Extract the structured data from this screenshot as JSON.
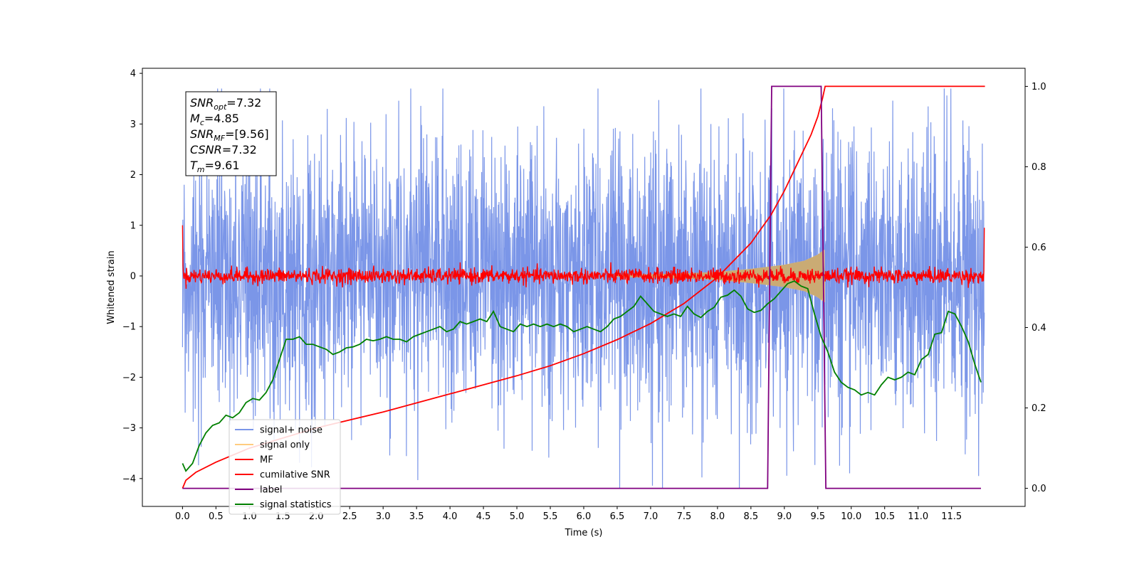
{
  "chart_data": {
    "type": "line",
    "title": "",
    "xlabel": "Time (s)",
    "ylabel": "Whitened strain",
    "xlim": [
      -0.6,
      12.6
    ],
    "ylim": [
      -4.55,
      4.1
    ],
    "y2lim": [
      -0.045,
      1.045
    ],
    "x_ticks": [
      0.0,
      0.5,
      1.0,
      1.5,
      2.0,
      2.5,
      3.0,
      3.5,
      4.0,
      4.5,
      5.0,
      5.5,
      6.0,
      6.5,
      7.0,
      7.5,
      8.0,
      8.5,
      9.0,
      9.5,
      10.0,
      10.5,
      11.0,
      11.5
    ],
    "x_tick_labels": [
      "0.0",
      "0.5",
      "1.0",
      "1.5",
      "2.0",
      "2.5",
      "3.0",
      "3.5",
      "4.0",
      "4.5",
      "5.0",
      "5.5",
      "6.0",
      "6.5",
      "7.0",
      "7.5",
      "8.0",
      "8.5",
      "9.0",
      "9.5",
      "10.0",
      "10.5",
      "11.0",
      "11.5"
    ],
    "y_ticks": [
      4,
      3,
      2,
      1,
      0,
      -1,
      -2,
      -3,
      -4
    ],
    "y_tick_labels": [
      "4",
      "3",
      "2",
      "1",
      "0",
      "−1",
      "−2",
      "−3",
      "−4"
    ],
    "y2_ticks": [
      1.0,
      0.8,
      0.6,
      0.4,
      0.2,
      0.0
    ],
    "y2_tick_labels": [
      "1.0",
      "0.8",
      "0.6",
      "0.4",
      "0.2",
      "0.0"
    ],
    "grid": false,
    "legend_position": "lower-left",
    "legend": [
      {
        "name": "signal+ noise",
        "color": "#7b96e8"
      },
      {
        "name": "signal only",
        "color": "#ffcc80"
      },
      {
        "name": "MF",
        "color": "#ff0000"
      },
      {
        "name": "cumilative SNR",
        "color": "#ff0000"
      },
      {
        "name": "label",
        "color": "#800080"
      },
      {
        "name": "signal statistics",
        "color": "#008000"
      }
    ],
    "annotations": [
      {
        "base": "SNR",
        "sub": "opt",
        "value": "=7.32"
      },
      {
        "base": "M",
        "sub": "c",
        "value": "=4.85"
      },
      {
        "base": "SNR",
        "sub": "MF",
        "value": "=[9.56]"
      },
      {
        "base": "CSNR",
        "sub": "",
        "value": "=7.32"
      },
      {
        "base": "T",
        "sub": "m",
        "value": "=9.61"
      }
    ],
    "series": [
      {
        "name": "signal+ noise",
        "axis": "left",
        "color": "#7b96e8",
        "x_range": [
          0.0,
          11.99
        ],
        "description_envelope": {
          "typical_amplitude": 1.9,
          "max": 3.7,
          "min": -4.2
        }
      },
      {
        "name": "signal only",
        "axis": "left",
        "color": "#ffcc80",
        "x_range": [
          6.5,
          9.61
        ],
        "envelope_points": [
          [
            6.5,
            0.02
          ],
          [
            7.5,
            0.05
          ],
          [
            8.0,
            0.08
          ],
          [
            8.5,
            0.14
          ],
          [
            9.0,
            0.22
          ],
          [
            9.3,
            0.3
          ],
          [
            9.5,
            0.42
          ],
          [
            9.6,
            0.52
          ]
        ]
      },
      {
        "name": "MF",
        "axis": "left",
        "color": "#ff0000",
        "x_range": [
          0.0,
          11.99
        ],
        "start_value": 1.0,
        "end_value": 0.95,
        "typical_amplitude": 0.15
      },
      {
        "name": "cumilative SNR",
        "axis": "right",
        "color": "#ff0000",
        "points": [
          [
            0.0,
            0.0
          ],
          [
            0.05,
            0.02
          ],
          [
            0.2,
            0.04
          ],
          [
            0.5,
            0.065
          ],
          [
            1.0,
            0.1
          ],
          [
            2.0,
            0.15
          ],
          [
            3.0,
            0.19
          ],
          [
            4.0,
            0.235
          ],
          [
            5.0,
            0.28
          ],
          [
            5.5,
            0.305
          ],
          [
            6.0,
            0.335
          ],
          [
            6.5,
            0.37
          ],
          [
            7.0,
            0.41
          ],
          [
            7.5,
            0.46
          ],
          [
            8.0,
            0.525
          ],
          [
            8.5,
            0.61
          ],
          [
            8.8,
            0.68
          ],
          [
            9.0,
            0.74
          ],
          [
            9.2,
            0.81
          ],
          [
            9.4,
            0.88
          ],
          [
            9.5,
            0.925
          ],
          [
            9.57,
            0.97
          ],
          [
            9.61,
            1.0
          ],
          [
            12.0,
            1.0
          ]
        ]
      },
      {
        "name": "label",
        "axis": "right",
        "color": "#800080",
        "points": [
          [
            0.0,
            0.0
          ],
          [
            8.75,
            0.0
          ],
          [
            8.81,
            1.0
          ],
          [
            9.55,
            1.0
          ],
          [
            9.62,
            0.0
          ],
          [
            11.94,
            0.0
          ]
        ]
      },
      {
        "name": "signal statistics",
        "axis": "left",
        "color": "#008000",
        "points": [
          [
            0.0,
            -3.7
          ],
          [
            0.05,
            -3.85
          ],
          [
            0.15,
            -3.7
          ],
          [
            0.25,
            -3.35
          ],
          [
            0.35,
            -3.1
          ],
          [
            0.45,
            -2.95
          ],
          [
            0.55,
            -2.9
          ],
          [
            0.65,
            -2.75
          ],
          [
            0.75,
            -2.8
          ],
          [
            0.85,
            -2.7
          ],
          [
            0.95,
            -2.5
          ],
          [
            1.05,
            -2.42
          ],
          [
            1.15,
            -2.45
          ],
          [
            1.25,
            -2.3
          ],
          [
            1.35,
            -2.05
          ],
          [
            1.45,
            -1.65
          ],
          [
            1.55,
            -1.25
          ],
          [
            1.65,
            -1.25
          ],
          [
            1.75,
            -1.2
          ],
          [
            1.85,
            -1.35
          ],
          [
            1.95,
            -1.35
          ],
          [
            2.05,
            -1.4
          ],
          [
            2.15,
            -1.45
          ],
          [
            2.25,
            -1.55
          ],
          [
            2.35,
            -1.5
          ],
          [
            2.45,
            -1.42
          ],
          [
            2.55,
            -1.4
          ],
          [
            2.65,
            -1.35
          ],
          [
            2.75,
            -1.25
          ],
          [
            2.85,
            -1.28
          ],
          [
            2.95,
            -1.25
          ],
          [
            3.05,
            -1.2
          ],
          [
            3.15,
            -1.25
          ],
          [
            3.25,
            -1.25
          ],
          [
            3.35,
            -1.3
          ],
          [
            3.45,
            -1.2
          ],
          [
            3.55,
            -1.15
          ],
          [
            3.65,
            -1.1
          ],
          [
            3.75,
            -1.05
          ],
          [
            3.85,
            -1.0
          ],
          [
            3.95,
            -1.1
          ],
          [
            4.05,
            -1.05
          ],
          [
            4.15,
            -0.9
          ],
          [
            4.25,
            -0.95
          ],
          [
            4.35,
            -0.9
          ],
          [
            4.45,
            -0.85
          ],
          [
            4.55,
            -0.9
          ],
          [
            4.65,
            -0.7
          ],
          [
            4.75,
            -1.0
          ],
          [
            4.85,
            -1.05
          ],
          [
            4.95,
            -1.1
          ],
          [
            5.05,
            -0.95
          ],
          [
            5.15,
            -1.0
          ],
          [
            5.25,
            -0.95
          ],
          [
            5.35,
            -1.0
          ],
          [
            5.45,
            -0.95
          ],
          [
            5.55,
            -1.0
          ],
          [
            5.65,
            -0.95
          ],
          [
            5.75,
            -1.0
          ],
          [
            5.85,
            -1.1
          ],
          [
            5.95,
            -1.05
          ],
          [
            6.05,
            -1.0
          ],
          [
            6.15,
            -1.05
          ],
          [
            6.25,
            -1.1
          ],
          [
            6.35,
            -1.0
          ],
          [
            6.45,
            -0.85
          ],
          [
            6.55,
            -0.8
          ],
          [
            6.65,
            -0.7
          ],
          [
            6.75,
            -0.6
          ],
          [
            6.85,
            -0.4
          ],
          [
            6.95,
            -0.55
          ],
          [
            7.05,
            -0.7
          ],
          [
            7.15,
            -0.75
          ],
          [
            7.25,
            -0.8
          ],
          [
            7.35,
            -0.75
          ],
          [
            7.45,
            -0.8
          ],
          [
            7.55,
            -0.6
          ],
          [
            7.65,
            -0.75
          ],
          [
            7.75,
            -0.82
          ],
          [
            7.85,
            -0.7
          ],
          [
            7.95,
            -0.62
          ],
          [
            8.05,
            -0.42
          ],
          [
            8.15,
            -0.38
          ],
          [
            8.25,
            -0.28
          ],
          [
            8.35,
            -0.4
          ],
          [
            8.45,
            -0.65
          ],
          [
            8.55,
            -0.72
          ],
          [
            8.65,
            -0.68
          ],
          [
            8.75,
            -0.55
          ],
          [
            8.85,
            -0.45
          ],
          [
            8.95,
            -0.3
          ],
          [
            9.05,
            -0.15
          ],
          [
            9.15,
            -0.1
          ],
          [
            9.25,
            -0.2
          ],
          [
            9.35,
            -0.25
          ],
          [
            9.45,
            -0.75
          ],
          [
            9.55,
            -1.2
          ],
          [
            9.65,
            -1.5
          ],
          [
            9.75,
            -1.9
          ],
          [
            9.85,
            -2.1
          ],
          [
            9.95,
            -2.2
          ],
          [
            10.05,
            -2.25
          ],
          [
            10.15,
            -2.35
          ],
          [
            10.25,
            -2.3
          ],
          [
            10.35,
            -2.35
          ],
          [
            10.45,
            -2.15
          ],
          [
            10.55,
            -2.0
          ],
          [
            10.65,
            -2.05
          ],
          [
            10.75,
            -2.0
          ],
          [
            10.85,
            -1.9
          ],
          [
            10.95,
            -1.95
          ],
          [
            11.05,
            -1.65
          ],
          [
            11.15,
            -1.55
          ],
          [
            11.25,
            -1.15
          ],
          [
            11.35,
            -1.12
          ],
          [
            11.45,
            -0.7
          ],
          [
            11.55,
            -0.75
          ],
          [
            11.65,
            -1.0
          ],
          [
            11.75,
            -1.3
          ],
          [
            11.85,
            -1.75
          ],
          [
            11.94,
            -2.1
          ]
        ]
      }
    ]
  }
}
